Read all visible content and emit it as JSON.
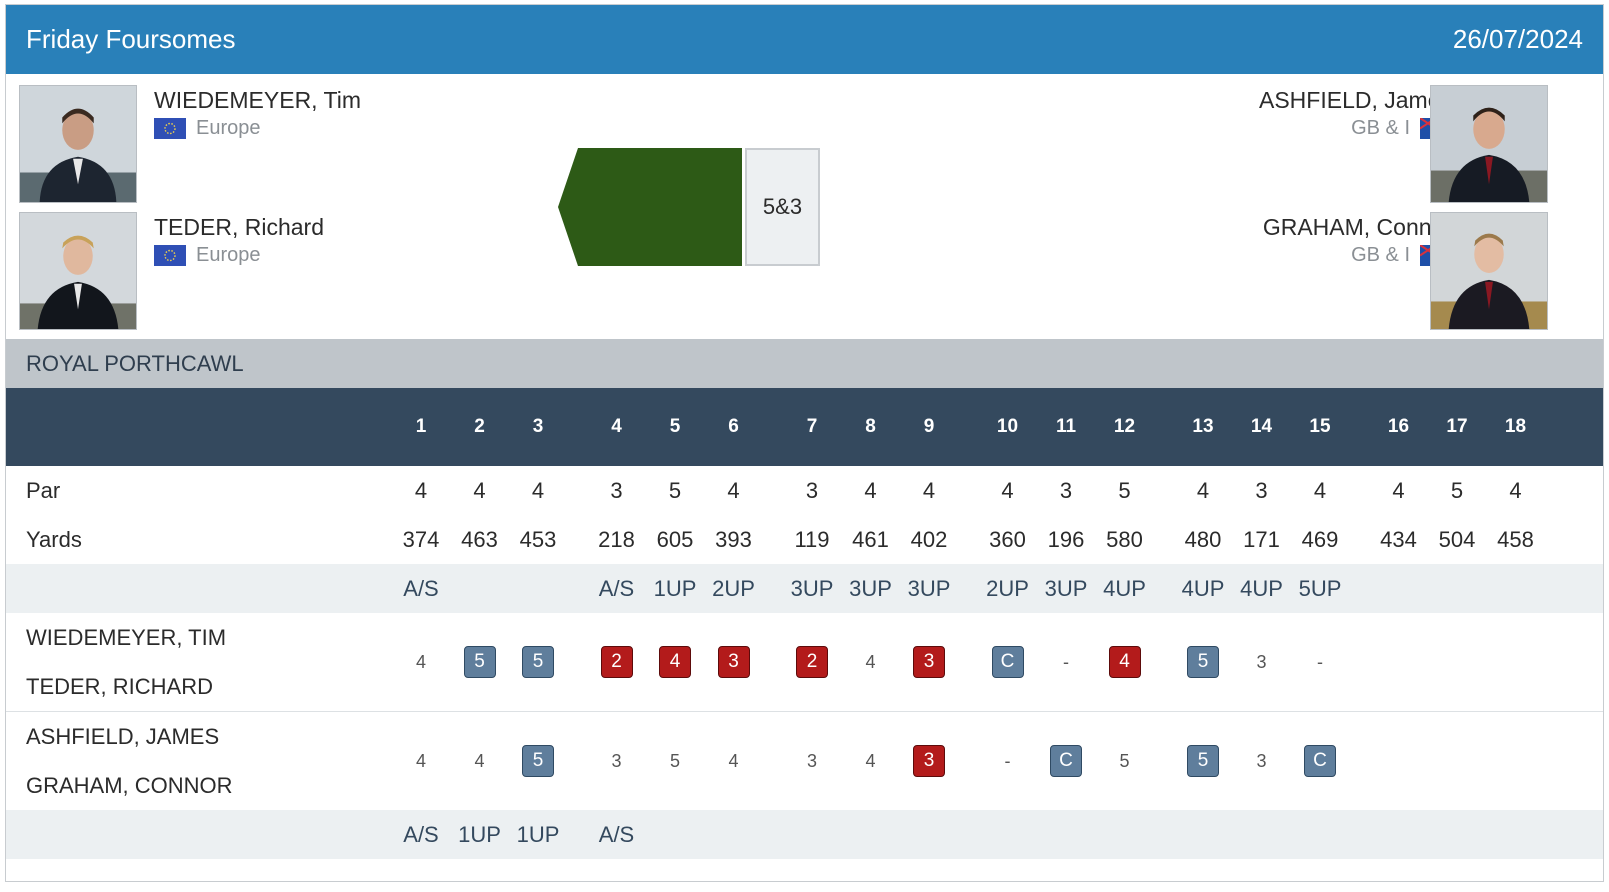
{
  "header": {
    "title": "Friday Foursomes",
    "date": "26/07/2024"
  },
  "left_team": {
    "players": [
      {
        "name": "WIEDEMEYER, Tim",
        "team": "Europe",
        "flag_icon": "eu-flag-icon"
      },
      {
        "name": "TEDER, Richard",
        "team": "Europe",
        "flag_icon": "eu-flag-icon"
      }
    ]
  },
  "right_team": {
    "players": [
      {
        "name": "ASHFIELD, James",
        "team": "GB & I",
        "flag_icon": "gbi-flag-icon"
      },
      {
        "name": "GRAHAM, Connor",
        "team": "GB & I",
        "flag_icon": "gbi-flag-icon"
      }
    ]
  },
  "result": {
    "score": "5&3",
    "winner_color": "#2d5a16"
  },
  "course": {
    "name": "ROYAL PORTHCAWL"
  },
  "colors": {
    "header": "#2980b9",
    "holes_header": "#34495e",
    "course_bar": "#bfc5ca",
    "birdie": "#b31b1b",
    "bogey": "#5f7e9c"
  },
  "scorecard": {
    "holes": [
      "1",
      "2",
      "3",
      "4",
      "5",
      "6",
      "7",
      "8",
      "9",
      "10",
      "11",
      "12",
      "13",
      "14",
      "15",
      "16",
      "17",
      "18"
    ],
    "par_label": "Par",
    "par": [
      "4",
      "4",
      "4",
      "3",
      "5",
      "4",
      "3",
      "4",
      "4",
      "4",
      "3",
      "5",
      "4",
      "3",
      "4",
      "4",
      "5",
      "4"
    ],
    "yards_label": "Yards",
    "yards": [
      "374",
      "463",
      "453",
      "218",
      "605",
      "393",
      "119",
      "461",
      "402",
      "360",
      "196",
      "580",
      "480",
      "171",
      "469",
      "434",
      "504",
      "458"
    ],
    "status_top": [
      "A/S",
      "",
      "",
      "A/S",
      "1UP",
      "2UP",
      "3UP",
      "3UP",
      "3UP",
      "2UP",
      "3UP",
      "4UP",
      "4UP",
      "4UP",
      "5UP",
      "",
      "",
      ""
    ],
    "team1": {
      "player1": "WIEDEMEYER, TIM",
      "player2": "TEDER, RICHARD",
      "scores": [
        {
          "v": "4",
          "t": "plain"
        },
        {
          "v": "5",
          "t": "bogey"
        },
        {
          "v": "5",
          "t": "bogey"
        },
        {
          "v": "2",
          "t": "birdie"
        },
        {
          "v": "4",
          "t": "birdie"
        },
        {
          "v": "3",
          "t": "birdie"
        },
        {
          "v": "2",
          "t": "birdie"
        },
        {
          "v": "4",
          "t": "plain"
        },
        {
          "v": "3",
          "t": "birdie"
        },
        {
          "v": "C",
          "t": "bogey"
        },
        {
          "v": "-",
          "t": "plain"
        },
        {
          "v": "4",
          "t": "birdie"
        },
        {
          "v": "5",
          "t": "bogey"
        },
        {
          "v": "3",
          "t": "plain"
        },
        {
          "v": "-",
          "t": "plain"
        },
        {
          "v": "",
          "t": "plain"
        },
        {
          "v": "",
          "t": "plain"
        },
        {
          "v": "",
          "t": "plain"
        }
      ]
    },
    "team2": {
      "player1": "ASHFIELD, JAMES",
      "player2": "GRAHAM, CONNOR",
      "scores": [
        {
          "v": "4",
          "t": "plain"
        },
        {
          "v": "4",
          "t": "plain"
        },
        {
          "v": "5",
          "t": "bogey"
        },
        {
          "v": "3",
          "t": "plain"
        },
        {
          "v": "5",
          "t": "plain"
        },
        {
          "v": "4",
          "t": "plain"
        },
        {
          "v": "3",
          "t": "plain"
        },
        {
          "v": "4",
          "t": "plain"
        },
        {
          "v": "3",
          "t": "birdie"
        },
        {
          "v": "-",
          "t": "plain"
        },
        {
          "v": "C",
          "t": "bogey"
        },
        {
          "v": "5",
          "t": "plain"
        },
        {
          "v": "5",
          "t": "bogey"
        },
        {
          "v": "3",
          "t": "plain"
        },
        {
          "v": "C",
          "t": "bogey"
        },
        {
          "v": "",
          "t": "plain"
        },
        {
          "v": "",
          "t": "plain"
        },
        {
          "v": "",
          "t": "plain"
        }
      ]
    },
    "status_bottom": [
      "A/S",
      "1UP",
      "1UP",
      "A/S",
      "",
      "",
      "",
      "",
      "",
      "",
      "",
      "",
      "",
      "",
      "",
      "",
      "",
      ""
    ]
  }
}
